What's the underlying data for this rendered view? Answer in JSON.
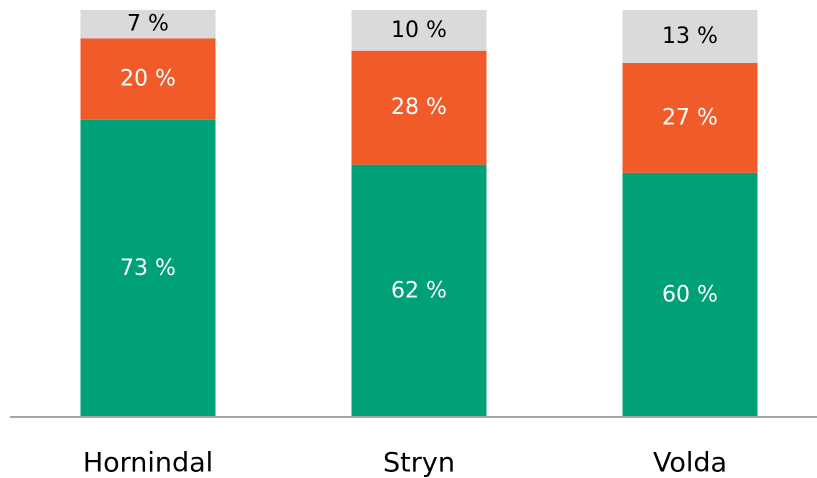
{
  "chart_data": {
    "type": "bar",
    "stacked": true,
    "orientation": "vertical",
    "title": "",
    "xlabel": "",
    "ylabel": "",
    "ylim": [
      0,
      100
    ],
    "categories": [
      "Hornindal",
      "Stryn",
      "Volda"
    ],
    "series": [
      {
        "values": [
          73,
          62,
          60
        ],
        "labels": [
          "73 %",
          "62 %",
          "60 %"
        ],
        "color": "#00A078",
        "label_color": "#FFFFFF"
      },
      {
        "values": [
          20,
          28,
          27
        ],
        "labels": [
          "20 %",
          "28 %",
          "27 %"
        ],
        "color": "#F15A29",
        "label_color": "#FFFFFF"
      },
      {
        "values": [
          7,
          10,
          13
        ],
        "labels": [
          "7 %",
          "10 %",
          "13 %"
        ],
        "color": "#DADADA",
        "label_color": "#000000"
      }
    ],
    "axis_color": "#A6A6A6",
    "grid": false,
    "legend": "none"
  }
}
